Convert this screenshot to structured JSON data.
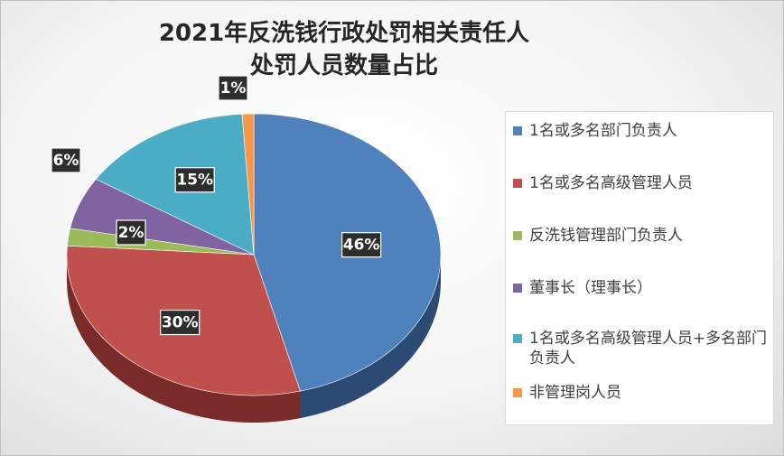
{
  "chart_data": {
    "type": "pie",
    "title_lines": [
      "2021年反洗钱行政处罚相关责任人",
      "处罚人员数量占比"
    ],
    "slices": [
      {
        "label": "1名或多名部门负责人",
        "value": 46,
        "display": "46%",
        "color": "#4f81bd",
        "side": "#2c4a72"
      },
      {
        "label": "1名或多名高级管理人员",
        "value": 30,
        "display": "30%",
        "color": "#c0504d",
        "side": "#7a2b29"
      },
      {
        "label": "反洗钱管理部门负责人",
        "value": 2,
        "display": "2%",
        "color": "#9bbb59",
        "side": "#5f7734"
      },
      {
        "label": "董事长（理事长）",
        "value": 6,
        "display": "6%",
        "color": "#8064a2",
        "side": "#4b3a62"
      },
      {
        "label": "1名或多名高级管理人员+多名部门负责人",
        "value": 15,
        "display": "15%",
        "color": "#4bacc6",
        "side": "#2a6c7e"
      },
      {
        "label": "非管理岗人员",
        "value": 1,
        "display": "1%",
        "color": "#f79646",
        "side": "#a85f22"
      }
    ],
    "legend_position": "right"
  }
}
